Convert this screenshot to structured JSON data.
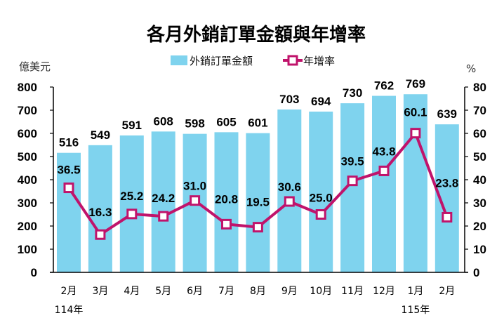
{
  "chart_data": {
    "type": "bar+line",
    "title": "各月外銷訂單金額與年增率",
    "categories": [
      "2月",
      "3月",
      "4月",
      "5月",
      "6月",
      "7月",
      "8月",
      "9月",
      "10月",
      "11月",
      "12月",
      "1月",
      "2月"
    ],
    "year_labels": [
      {
        "label": "114年",
        "category_index": 0
      },
      {
        "label": "115年",
        "category_index": 11
      }
    ],
    "series": [
      {
        "name": "外銷訂單金額",
        "type": "bar",
        "axis": "left",
        "color": "#7fd3ee",
        "values": [
          516,
          549,
          591,
          608,
          598,
          605,
          601,
          703,
          694,
          730,
          762,
          769,
          639
        ],
        "labels": [
          "516",
          "549",
          "591",
          "608",
          "598",
          "605",
          "601",
          "703",
          "694",
          "730",
          "762",
          "769",
          "639"
        ]
      },
      {
        "name": "年增率",
        "type": "line",
        "axis": "right",
        "color": "#c0136b",
        "values": [
          36.5,
          16.3,
          25.2,
          24.2,
          31.0,
          20.8,
          19.5,
          30.6,
          25.0,
          39.5,
          43.8,
          60.1,
          23.8
        ],
        "labels": [
          "36.5",
          "16.3",
          "25.2",
          "24.2",
          "31.0",
          "20.8",
          "19.5",
          "30.6",
          "25.0",
          "39.5",
          "43.8",
          "60.1",
          "23.8"
        ]
      }
    ],
    "left_axis": {
      "label": "億美元",
      "ylim": [
        0,
        800
      ],
      "ticks": [
        "0",
        "100",
        "200",
        "300",
        "400",
        "500",
        "600",
        "700",
        "800"
      ]
    },
    "right_axis": {
      "label": "%",
      "ylim": [
        0,
        80
      ],
      "ticks": [
        "0",
        "10",
        "20",
        "30",
        "40",
        "50",
        "60",
        "70",
        "80"
      ]
    },
    "legend": {
      "placement": "top-center",
      "items": [
        "外銷訂單金額",
        "年增率"
      ]
    },
    "grid": false
  }
}
